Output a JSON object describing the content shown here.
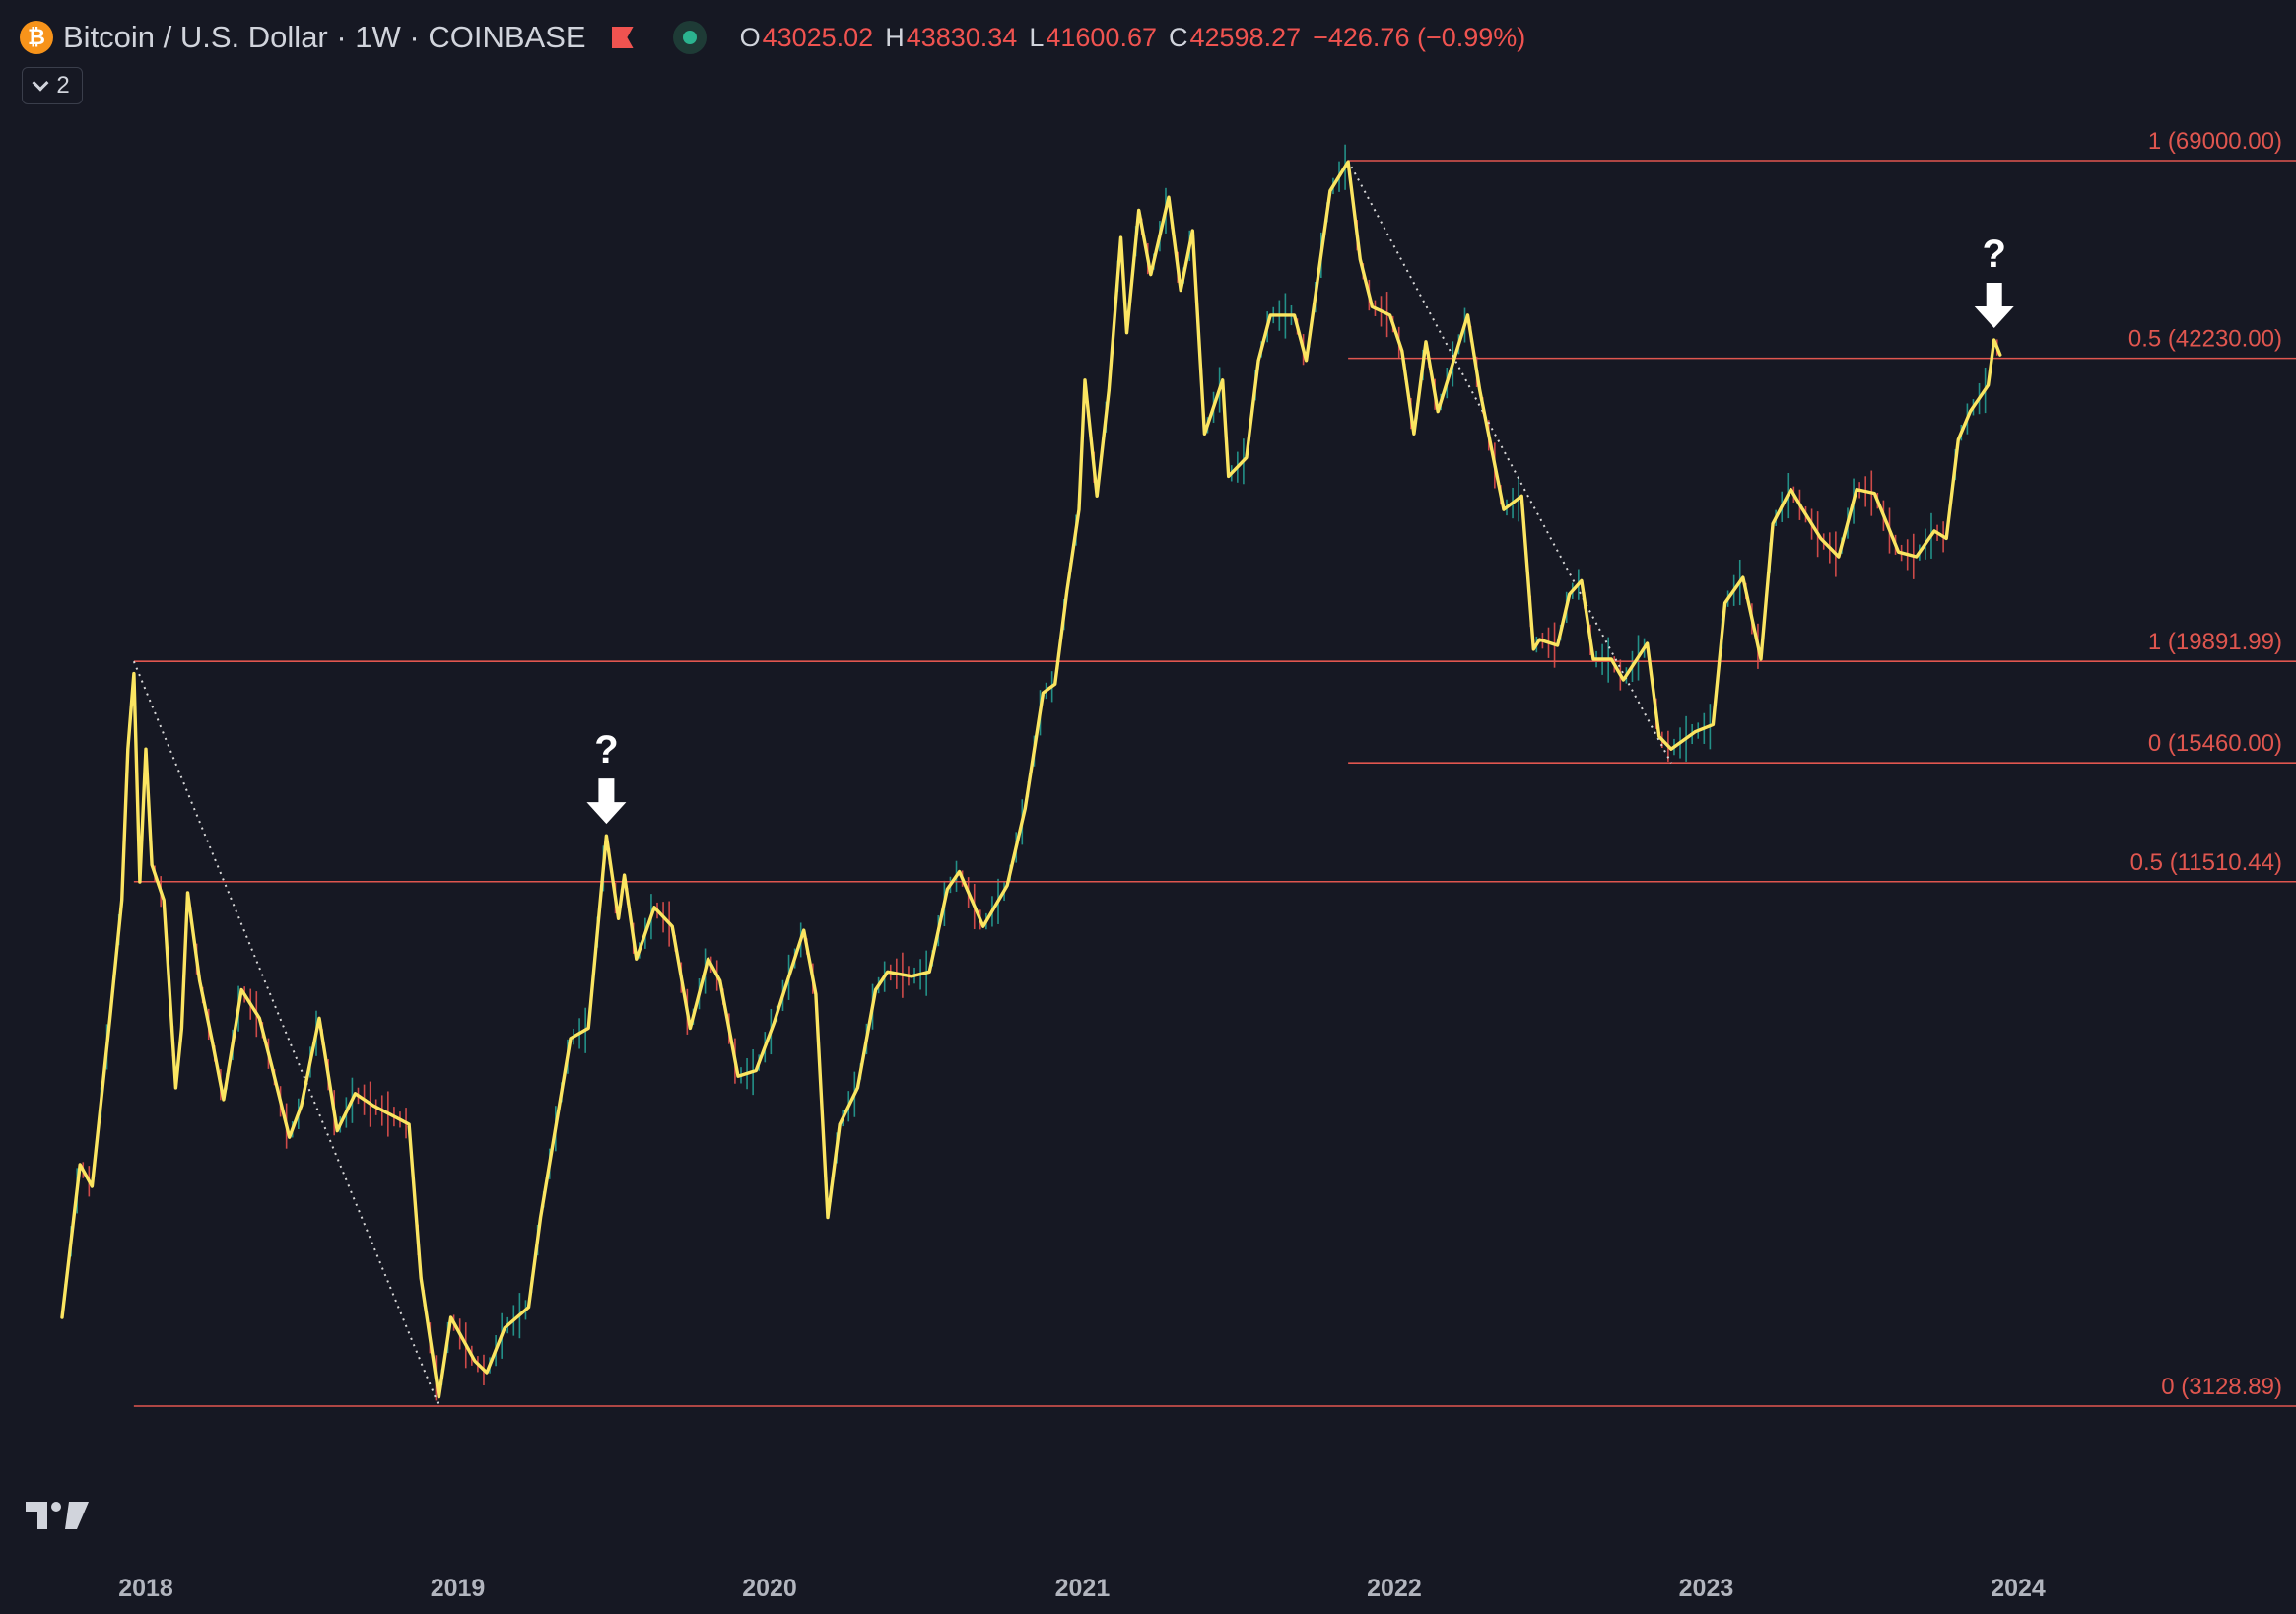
{
  "legend": {
    "coin_icon_text": "₿",
    "title": "Bitcoin / U.S. Dollar · 1W · COINBASE",
    "open_label": "O",
    "open_value": "43025.02",
    "high_label": "H",
    "high_value": "43830.34",
    "low_label": "L",
    "low_value": "41600.67",
    "close_label": "C",
    "close_value": "42598.27",
    "change": "−426.76 (−0.99%)"
  },
  "indicators_toggle": {
    "count": "2"
  },
  "colors": {
    "background": "#161823",
    "price_line": "#fbe561",
    "fib_line": "#e0564f",
    "fib_label": "#e0564f",
    "up_candle": "#26a69a",
    "down_candle": "#ef5350",
    "axis_text": "#b2b5be",
    "annotation": "#ffffff"
  },
  "chart_data": {
    "type": "line",
    "symbol": "BTCUSD",
    "interval": "1W",
    "exchange": "COINBASE",
    "scale": "log",
    "y_range": [
      2100,
      70500
    ],
    "x_range": [
      "2017-09-25",
      "2024-12-15"
    ],
    "x_ticks": [
      {
        "date": "2018-01-01",
        "label": "2018"
      },
      {
        "date": "2019-01-01",
        "label": "2019"
      },
      {
        "date": "2020-01-01",
        "label": "2020"
      },
      {
        "date": "2021-01-01",
        "label": "2021"
      },
      {
        "date": "2022-01-01",
        "label": "2022"
      },
      {
        "date": "2023-01-01",
        "label": "2023"
      },
      {
        "date": "2024-01-01",
        "label": "2024"
      }
    ],
    "series": [
      {
        "values": [
          [
            "2017-09-25",
            3900
          ],
          [
            "2017-10-16",
            5700
          ],
          [
            "2017-10-30",
            5400
          ],
          [
            "2017-11-20",
            8200
          ],
          [
            "2017-12-04",
            11000
          ],
          [
            "2017-12-11",
            16000
          ],
          [
            "2017-12-18",
            19300
          ],
          [
            "2017-12-25",
            11500
          ],
          [
            "2018-01-01",
            16000
          ],
          [
            "2018-01-08",
            12000
          ],
          [
            "2018-01-22",
            11000
          ],
          [
            "2018-02-05",
            6900
          ],
          [
            "2018-02-12",
            8000
          ],
          [
            "2018-02-19",
            11200
          ],
          [
            "2018-03-05",
            9000
          ],
          [
            "2018-03-19",
            7800
          ],
          [
            "2018-04-02",
            6700
          ],
          [
            "2018-04-23",
            8800
          ],
          [
            "2018-05-14",
            8200
          ],
          [
            "2018-05-28",
            7300
          ],
          [
            "2018-06-18",
            6100
          ],
          [
            "2018-07-02",
            6600
          ],
          [
            "2018-07-23",
            8200
          ],
          [
            "2018-08-13",
            6200
          ],
          [
            "2018-09-03",
            6800
          ],
          [
            "2018-09-24",
            6600
          ],
          [
            "2018-10-22",
            6400
          ],
          [
            "2018-11-05",
            6300
          ],
          [
            "2018-11-19",
            4300
          ],
          [
            "2018-12-10",
            3200
          ],
          [
            "2018-12-24",
            3900
          ],
          [
            "2019-01-21",
            3500
          ],
          [
            "2019-02-04",
            3400
          ],
          [
            "2019-02-25",
            3800
          ],
          [
            "2019-03-25",
            4000
          ],
          [
            "2019-04-08",
            5000
          ],
          [
            "2019-05-13",
            7800
          ],
          [
            "2019-06-03",
            8000
          ],
          [
            "2019-06-24",
            12900
          ],
          [
            "2019-07-08",
            10500
          ],
          [
            "2019-07-15",
            11700
          ],
          [
            "2019-07-29",
            9500
          ],
          [
            "2019-08-19",
            10800
          ],
          [
            "2019-09-09",
            10300
          ],
          [
            "2019-09-30",
            8000
          ],
          [
            "2019-10-21",
            9500
          ],
          [
            "2019-11-04",
            9000
          ],
          [
            "2019-11-25",
            7100
          ],
          [
            "2019-12-16",
            7200
          ],
          [
            "2020-01-06",
            8100
          ],
          [
            "2020-02-10",
            10200
          ],
          [
            "2020-02-24",
            8700
          ],
          [
            "2020-03-09",
            5000
          ],
          [
            "2020-03-23",
            6300
          ],
          [
            "2020-04-13",
            6900
          ],
          [
            "2020-05-04",
            8800
          ],
          [
            "2020-05-18",
            9200
          ],
          [
            "2020-06-15",
            9100
          ],
          [
            "2020-07-06",
            9200
          ],
          [
            "2020-07-27",
            11300
          ],
          [
            "2020-08-10",
            11800
          ],
          [
            "2020-09-07",
            10300
          ],
          [
            "2020-10-05",
            11400
          ],
          [
            "2020-10-26",
            13800
          ],
          [
            "2020-11-16",
            18400
          ],
          [
            "2020-11-30",
            18800
          ],
          [
            "2020-12-14",
            23700
          ],
          [
            "2020-12-28",
            29000
          ],
          [
            "2021-01-04",
            40000
          ],
          [
            "2021-01-18",
            30000
          ],
          [
            "2021-02-01",
            39000
          ],
          [
            "2021-02-15",
            57000
          ],
          [
            "2021-02-22",
            45000
          ],
          [
            "2021-03-08",
            61000
          ],
          [
            "2021-03-22",
            52000
          ],
          [
            "2021-04-12",
            63000
          ],
          [
            "2021-04-26",
            50000
          ],
          [
            "2021-05-10",
            58000
          ],
          [
            "2021-05-24",
            35000
          ],
          [
            "2021-06-14",
            40000
          ],
          [
            "2021-06-21",
            31500
          ],
          [
            "2021-07-12",
            33000
          ],
          [
            "2021-07-26",
            42000
          ],
          [
            "2021-08-09",
            47000
          ],
          [
            "2021-09-06",
            47000
          ],
          [
            "2021-09-20",
            42000
          ],
          [
            "2021-10-18",
            64000
          ],
          [
            "2021-11-08",
            68800
          ],
          [
            "2021-11-22",
            54000
          ],
          [
            "2021-12-06",
            48000
          ],
          [
            "2021-12-27",
            47000
          ],
          [
            "2022-01-10",
            43000
          ],
          [
            "2022-01-24",
            35000
          ],
          [
            "2022-02-07",
            44000
          ],
          [
            "2022-02-21",
            37000
          ],
          [
            "2022-03-28",
            47000
          ],
          [
            "2022-04-11",
            39000
          ],
          [
            "2022-05-09",
            29000
          ],
          [
            "2022-05-30",
            30000
          ],
          [
            "2022-06-13",
            20500
          ],
          [
            "2022-06-20",
            21000
          ],
          [
            "2022-07-11",
            20700
          ],
          [
            "2022-07-25",
            23500
          ],
          [
            "2022-08-08",
            24300
          ],
          [
            "2022-08-22",
            20000
          ],
          [
            "2022-09-12",
            20000
          ],
          [
            "2022-09-26",
            19000
          ],
          [
            "2022-10-24",
            20800
          ],
          [
            "2022-11-07",
            16500
          ],
          [
            "2022-11-21",
            16000
          ],
          [
            "2022-12-19",
            16700
          ],
          [
            "2023-01-09",
            17000
          ],
          [
            "2023-01-23",
            23000
          ],
          [
            "2023-02-13",
            24500
          ],
          [
            "2023-03-06",
            20000
          ],
          [
            "2023-03-20",
            28000
          ],
          [
            "2023-04-10",
            30500
          ],
          [
            "2023-04-24",
            29000
          ],
          [
            "2023-05-15",
            27000
          ],
          [
            "2023-06-05",
            25800
          ],
          [
            "2023-06-26",
            30500
          ],
          [
            "2023-07-17",
            30200
          ],
          [
            "2023-08-14",
            26100
          ],
          [
            "2023-09-04",
            25800
          ],
          [
            "2023-09-25",
            27500
          ],
          [
            "2023-10-09",
            27000
          ],
          [
            "2023-10-23",
            34500
          ],
          [
            "2023-11-06",
            37000
          ],
          [
            "2023-11-27",
            39500
          ],
          [
            "2023-12-04",
            44200
          ],
          [
            "2023-12-11",
            42600
          ]
        ]
      }
    ],
    "fib_levels": [
      {
        "label": "1 (69000.00)",
        "value": 69000.0,
        "from": "2021-11-08"
      },
      {
        "label": "0.5 (42230.00)",
        "value": 42230.0,
        "from": "2021-11-08"
      },
      {
        "label": "1 (19891.99)",
        "value": 19891.99,
        "from": "2017-12-18"
      },
      {
        "label": "0 (15460.00)",
        "value": 15460.0,
        "from": "2021-11-08"
      },
      {
        "label": "0.5 (11510.44)",
        "value": 11510.44,
        "from": "2017-12-18"
      },
      {
        "label": "0 (3128.89)",
        "value": 3128.89,
        "from": "2017-12-18"
      }
    ],
    "trend_lines": [
      {
        "from": [
          "2017-12-18",
          19891.99
        ],
        "to": [
          "2018-12-10",
          3128.89
        ]
      },
      {
        "from": [
          "2021-11-08",
          69000.0
        ],
        "to": [
          "2022-11-21",
          15460.0
        ]
      }
    ],
    "annotations": [
      {
        "text": "?",
        "date": "2019-06-24",
        "value": 12900
      },
      {
        "text": "?",
        "date": "2023-12-04",
        "value": 44200
      }
    ]
  }
}
